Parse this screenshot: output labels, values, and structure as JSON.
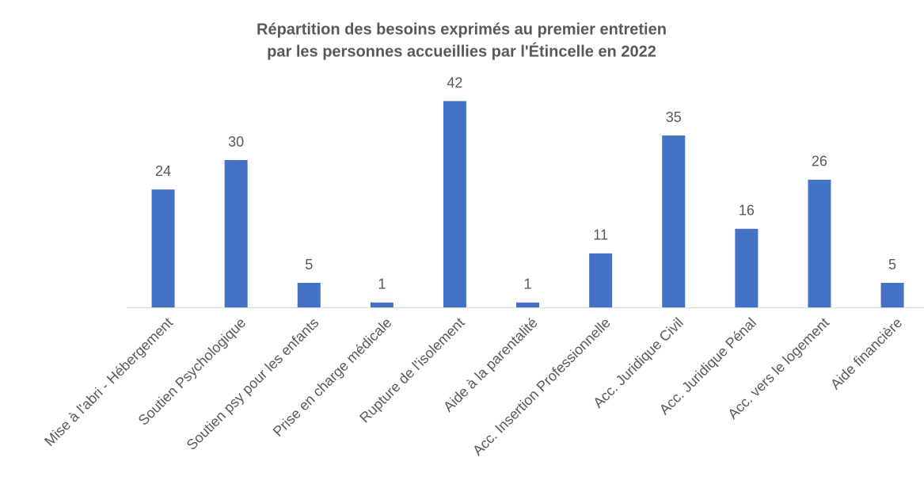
{
  "chart_data": {
    "type": "bar",
    "title": [
      "Répartition des besoins exprimés au premier entretien",
      "par les personnes accueillies par l'Étincelle en 2022"
    ],
    "categories": [
      "Mise à l'abri - Hébergement",
      "Soutien Psychologique",
      "Soutien psy pour les enfants",
      "Prise en charge médicale",
      "Rupture de l'isolement",
      "Aide à la parentalité",
      "Acc. Insertion Professionnelle",
      "Acc. Juridique Civil",
      "Acc. Juridique Pénal",
      "Acc. vers le logement",
      "Aide financière"
    ],
    "values": [
      24,
      30,
      5,
      1,
      42,
      1,
      11,
      35,
      16,
      26,
      5
    ],
    "color": "#4472c4",
    "ylim": [
      0,
      45
    ]
  }
}
